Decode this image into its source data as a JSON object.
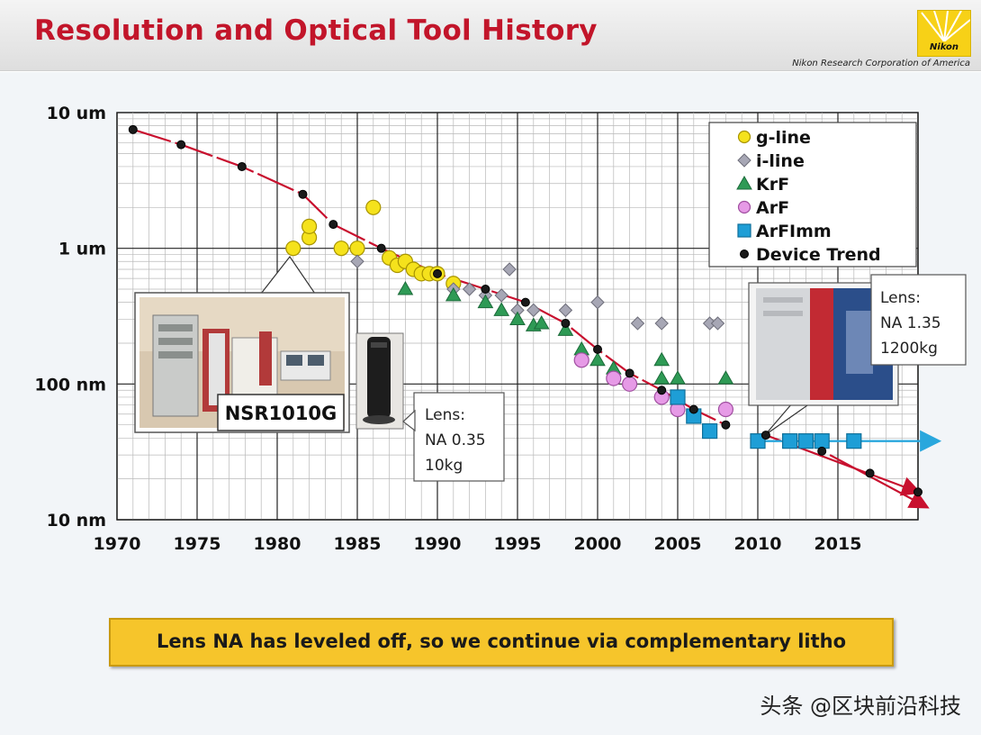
{
  "slide": {
    "title": "Resolution and Optical Tool History",
    "company": "Nikon Research Corporation of America",
    "logo_text": "Nikon",
    "callout": "Lens NA has leveled off, so we continue via complementary litho",
    "watermark": "头条 @区块前沿科技"
  },
  "colors": {
    "title": "#c2152a",
    "trend_line": "#c8102e",
    "g_line": "#f5e21c",
    "i_line": "#a7a7b5",
    "krf": "#2e9a55",
    "arf": "#e69ae6",
    "arfimm": "#1e9ed6",
    "device": "#1a1a1a",
    "arrow_blue": "#29a7dd",
    "callout_bg": "#f6c52b"
  },
  "annotations": {
    "nsr_label": "NSR1010G",
    "lens_left": [
      "Lens:",
      "NA 0.35",
      "10kg"
    ],
    "lens_right": [
      "Lens:",
      "NA 1.35",
      "1200kg"
    ]
  },
  "chart_data": {
    "type": "scatter",
    "title": "",
    "xlabel": "",
    "ylabel": "",
    "x_range": [
      1970,
      2020
    ],
    "x_ticks": [
      1970,
      1975,
      1980,
      1985,
      1990,
      1995,
      2000,
      2005,
      2010,
      2015
    ],
    "y_scale": "log",
    "y_unit": "nm",
    "y_range": [
      10,
      10000
    ],
    "y_ticks": [
      {
        "value": 10,
        "label": "10 nm"
      },
      {
        "value": 100,
        "label": "100 nm"
      },
      {
        "value": 1000,
        "label": "1 um"
      },
      {
        "value": 10000,
        "label": "10 um"
      }
    ],
    "grid": true,
    "legend_position": "top-right",
    "legend": [
      "g-line",
      "i-line",
      "KrF",
      "ArF",
      "ArFImm",
      "Device Trend"
    ],
    "series": [
      {
        "name": "g-line",
        "marker": "circle",
        "points": [
          [
            1981,
            1000
          ],
          [
            1982,
            1200
          ],
          [
            1982,
            1450
          ],
          [
            1984,
            1000
          ],
          [
            1985,
            1000
          ],
          [
            1986,
            2000
          ],
          [
            1987,
            850
          ],
          [
            1987.5,
            750
          ],
          [
            1988,
            800
          ],
          [
            1988.5,
            700
          ],
          [
            1989,
            650
          ],
          [
            1989.5,
            650
          ],
          [
            1990,
            650
          ],
          [
            1991,
            550
          ]
        ]
      },
      {
        "name": "i-line",
        "marker": "diamond",
        "points": [
          [
            1985,
            800
          ],
          [
            1991,
            500
          ],
          [
            1992,
            500
          ],
          [
            1993,
            450
          ],
          [
            1994,
            450
          ],
          [
            1994.5,
            700
          ],
          [
            1995,
            350
          ],
          [
            1996,
            350
          ],
          [
            1998,
            350
          ],
          [
            2000,
            400
          ],
          [
            2002.5,
            280
          ],
          [
            2004,
            280
          ],
          [
            2007,
            280
          ],
          [
            2007.5,
            280
          ]
        ]
      },
      {
        "name": "KrF",
        "marker": "triangle",
        "points": [
          [
            1988,
            500
          ],
          [
            1991,
            450
          ],
          [
            1993,
            400
          ],
          [
            1994,
            350
          ],
          [
            1995,
            300
          ],
          [
            1996,
            270
          ],
          [
            1996.5,
            280
          ],
          [
            1998,
            250
          ],
          [
            1999,
            180
          ],
          [
            2000,
            150
          ],
          [
            2001,
            130
          ],
          [
            2004,
            110
          ],
          [
            2004,
            150
          ],
          [
            2005,
            110
          ],
          [
            2008,
            110
          ]
        ]
      },
      {
        "name": "ArF",
        "marker": "circle",
        "points": [
          [
            1999,
            150
          ],
          [
            2001,
            110
          ],
          [
            2002,
            100
          ],
          [
            2004,
            80
          ],
          [
            2005,
            65
          ],
          [
            2008,
            65
          ]
        ]
      },
      {
        "name": "ArFImm",
        "marker": "square",
        "points": [
          [
            2005,
            80
          ],
          [
            2006,
            58
          ],
          [
            2007,
            45
          ],
          [
            2010,
            38
          ],
          [
            2012,
            38
          ],
          [
            2013,
            38
          ],
          [
            2014,
            38
          ],
          [
            2016,
            38
          ]
        ]
      },
      {
        "name": "Device Trend",
        "marker": "dot",
        "points": [
          [
            1971,
            7500
          ],
          [
            1974,
            5800
          ],
          [
            1977.8,
            4000
          ],
          [
            1981.6,
            2500
          ],
          [
            1983.5,
            1500
          ],
          [
            1986.5,
            1000
          ],
          [
            1990,
            650
          ],
          [
            1993,
            500
          ],
          [
            1995.5,
            400
          ],
          [
            1998,
            280
          ],
          [
            2000,
            180
          ],
          [
            2002,
            120
          ],
          [
            2004,
            90
          ],
          [
            2006,
            65
          ],
          [
            2008,
            50
          ],
          [
            2010.5,
            42
          ],
          [
            2014,
            32
          ],
          [
            2017,
            22
          ],
          [
            2020,
            16
          ]
        ]
      }
    ]
  }
}
